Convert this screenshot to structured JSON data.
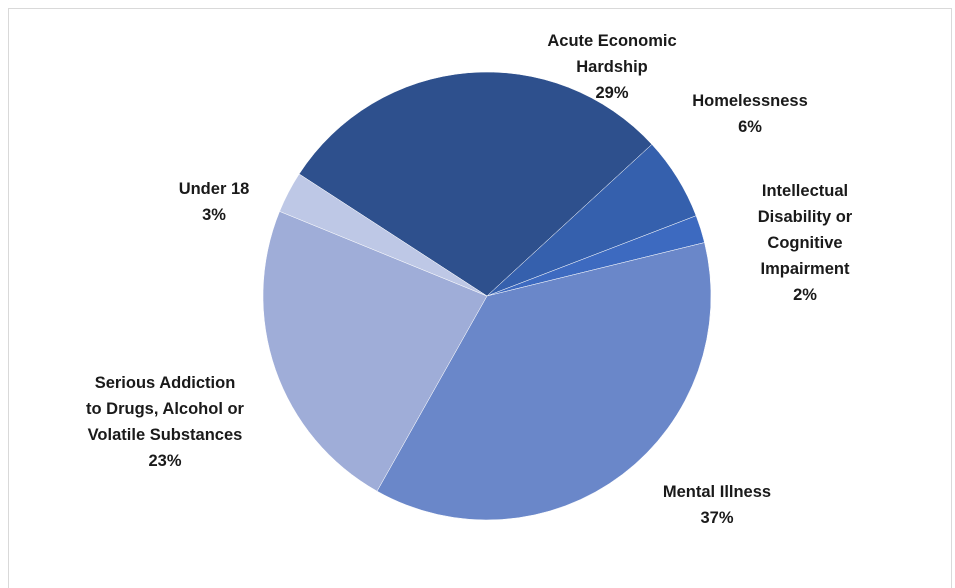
{
  "chart_data": {
    "type": "pie",
    "title": "",
    "slices": [
      {
        "label": "Acute Economic Hardship",
        "display_lines": [
          "Acute Economic",
          "Hardship"
        ],
        "pct_label": "29%",
        "value": 29,
        "color": "#2e508d"
      },
      {
        "label": "Homelessness",
        "display_lines": [
          "Homelessness"
        ],
        "pct_label": "6%",
        "value": 6,
        "color": "#3560ad"
      },
      {
        "label": "Intellectual Disability or Cognitive Impairment",
        "display_lines": [
          "Intellectual",
          "Disability or",
          "Cognitive",
          "Impairment"
        ],
        "pct_label": "2%",
        "value": 2,
        "color": "#3d6ac0"
      },
      {
        "label": "Mental Illness",
        "display_lines": [
          "Mental Illness"
        ],
        "pct_label": "37%",
        "value": 37,
        "color": "#6a87c9"
      },
      {
        "label": "Serious Addiction to Drugs, Alcohol or Volatile Substances",
        "display_lines": [
          "Serious Addiction",
          "to Drugs, Alcohol or",
          "Volatile Substances"
        ],
        "pct_label": "23%",
        "value": 23,
        "color": "#9fadd8"
      },
      {
        "label": "Under 18",
        "display_lines": [
          "Under 18"
        ],
        "pct_label": "3%",
        "value": 3,
        "color": "#bec8e6"
      }
    ],
    "legend": "none",
    "labels": "outside"
  }
}
